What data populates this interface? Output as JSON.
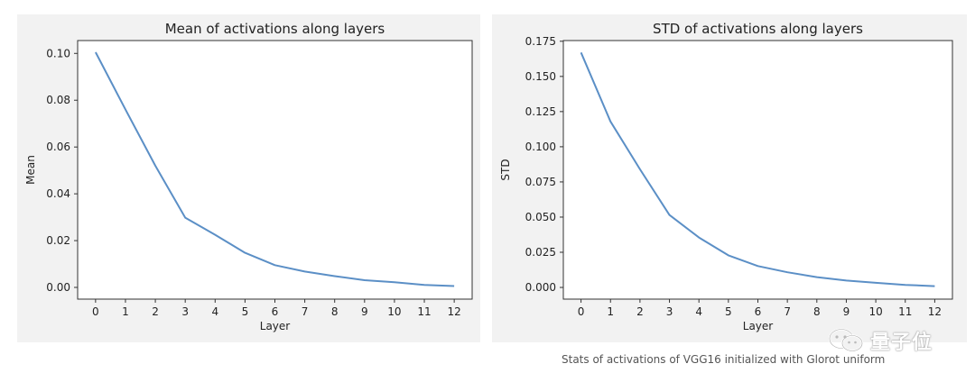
{
  "chart_data": [
    {
      "type": "line",
      "title": "Mean of activations along layers",
      "xlabel": "Layer",
      "ylabel": "Mean",
      "x": [
        0,
        1,
        2,
        3,
        4,
        5,
        6,
        7,
        8,
        9,
        10,
        11,
        12
      ],
      "series": [
        {
          "values": [
            0.1005,
            0.076,
            0.052,
            0.0298,
            0.0225,
            0.0148,
            0.0095,
            0.0068,
            0.0048,
            0.0031,
            0.0022,
            0.0011,
            0.0006
          ],
          "color": "#5b8fc6"
        }
      ],
      "xticks": [
        "0",
        "1",
        "2",
        "3",
        "4",
        "5",
        "6",
        "7",
        "8",
        "9",
        "10",
        "11",
        "12"
      ],
      "yticks": [
        "0.00",
        "0.02",
        "0.04",
        "0.06",
        "0.08",
        "0.10"
      ],
      "ytick_values": [
        0,
        0.02,
        0.04,
        0.06,
        0.08,
        0.1
      ],
      "xlim": [
        -0.6,
        12.6
      ],
      "ylim": [
        -0.005,
        0.1055
      ],
      "grid": false,
      "legend": "none"
    },
    {
      "type": "line",
      "title": "STD of activations along layers",
      "xlabel": "Layer",
      "ylabel": "STD",
      "x": [
        0,
        1,
        2,
        3,
        4,
        5,
        6,
        7,
        8,
        9,
        10,
        11,
        12
      ],
      "series": [
        {
          "values": [
            0.167,
            0.118,
            0.084,
            0.0515,
            0.0355,
            0.0228,
            0.0152,
            0.0108,
            0.0073,
            0.0049,
            0.0033,
            0.0018,
            0.0009
          ],
          "color": "#5b8fc6"
        }
      ],
      "xticks": [
        "0",
        "1",
        "2",
        "3",
        "4",
        "5",
        "6",
        "7",
        "8",
        "9",
        "10",
        "11",
        "12"
      ],
      "yticks": [
        "0.000",
        "0.025",
        "0.050",
        "0.075",
        "0.100",
        "0.125",
        "0.150",
        "0.175"
      ],
      "ytick_values": [
        0,
        0.025,
        0.05,
        0.075,
        0.1,
        0.125,
        0.15,
        0.175
      ],
      "xlim": [
        -0.6,
        12.6
      ],
      "ylim": [
        -0.0083,
        0.1755
      ],
      "grid": false,
      "legend": "none"
    }
  ],
  "caption": "Stats of activations of VGG16 initialized with Glorot uniform",
  "watermark": {
    "text": "量子位",
    "icon": "wechat-icon"
  }
}
